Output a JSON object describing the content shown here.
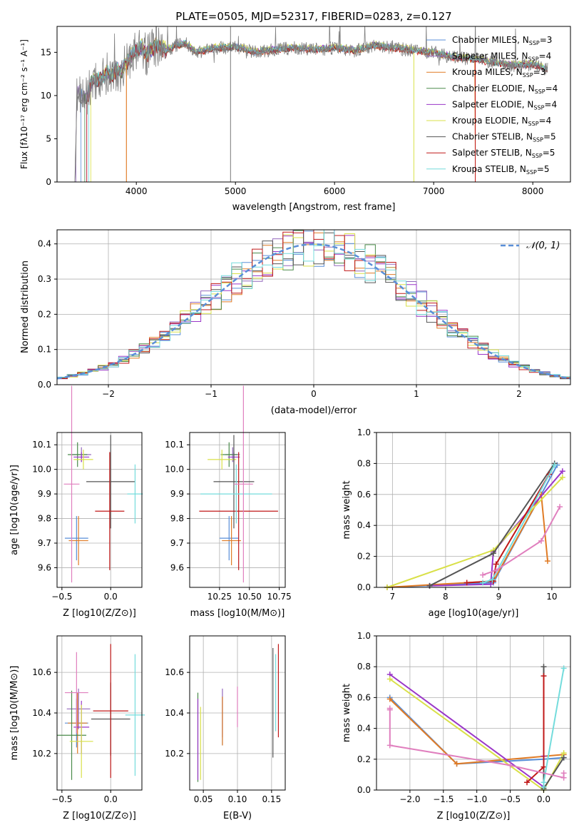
{
  "chart_data": [
    {
      "type": "line",
      "title": "PLATE=0505, MJD=52317, FIBERID=0283, z=0.127",
      "xlabel": "wavelength [Angstrom, rest frame]",
      "ylabel": "Flux [fλ10⁻¹⁷ erg cm⁻² s⁻¹ A⁻¹]",
      "xlim": [
        3200,
        8380
      ],
      "ylim": [
        0,
        18
      ],
      "xticks": [
        4000,
        5000,
        6000,
        7000,
        8000
      ],
      "yticks": [
        0,
        5,
        10,
        15
      ],
      "grid": false,
      "legend_position": "upper right",
      "observed_spectrum": {
        "x": [
          3380,
          3400,
          3450,
          3500,
          3550,
          3600,
          3650,
          3700,
          3750,
          3800,
          3850,
          3900,
          3950,
          4000,
          4050,
          4100,
          4200,
          4300,
          4400,
          4500,
          4600,
          4800,
          5000,
          5200,
          5400,
          5600,
          5800,
          6000,
          6200,
          6400,
          6600,
          6800,
          7000,
          7200,
          7400,
          7600,
          7800,
          8000,
          8150
        ],
        "y": [
          0,
          10.5,
          10.0,
          9.8,
          11.5,
          11.8,
          12.0,
          12.6,
          12.2,
          13.0,
          12.8,
          13.8,
          14.6,
          15.2,
          15.5,
          14.7,
          15.8,
          15.2,
          15.8,
          16.0,
          15.0,
          15.5,
          15.6,
          15.0,
          15.3,
          15.5,
          15.3,
          15.5,
          15.2,
          15.8,
          15.5,
          15.2,
          15.0,
          14.4,
          14.2,
          13.8,
          13.5,
          13.6,
          13.0
        ]
      },
      "series": [
        {
          "name": "Chabrier MILES, N_SSP=3",
          "color": "#5a8fd8",
          "offset": 0.0
        },
        {
          "name": "Salpeter MILES, N_SSP=4",
          "color": "#9468bd",
          "offset": 0.08
        },
        {
          "name": "Kroupa MILES, N_SSP=3",
          "color": "#e07b25",
          "offset": -0.08
        },
        {
          "name": "Chabrier ELODIE, N_SSP=4",
          "color": "#4a8a4a",
          "offset": 0.05
        },
        {
          "name": "Salpeter ELODIE, N_SSP=4",
          "color": "#9a36c8",
          "offset": 0.12
        },
        {
          "name": "Kroupa ELODIE, N_SSP=4",
          "color": "#d9e048",
          "offset": 0.2
        },
        {
          "name": "Chabrier STELIB, N_SSP=5",
          "color": "#555555",
          "offset": -0.05
        },
        {
          "name": "Salpeter STELIB, N_SSP=5",
          "color": "#c01818",
          "offset": -0.1
        },
        {
          "name": "Kroupa STELIB, N_SSP=5",
          "color": "#74dcdc",
          "offset": 0.1
        }
      ],
      "legend_labels": [
        [
          "Chabrier MILES, N",
          "SSP",
          "=3"
        ],
        [
          "Salpeter MILES, N",
          "SSP",
          "=4"
        ],
        [
          "Kroupa MILES, N",
          "SSP",
          "=3"
        ],
        [
          "Chabrier ELODIE, N",
          "SSP",
          "=4"
        ],
        [
          "Salpeter ELODIE, N",
          "SSP",
          "=4"
        ],
        [
          "Kroupa ELODIE, N",
          "SSP",
          "=4"
        ],
        [
          "Chabrier STELIB, N",
          "SSP",
          "=5"
        ],
        [
          "Salpeter STELIB, N",
          "SSP",
          "=5"
        ],
        [
          "Kroupa STELIB, N",
          "SSP",
          "=5"
        ]
      ]
    },
    {
      "type": "line",
      "xlabel": "(data-model)/error",
      "ylabel": "Normed distribution",
      "xlim": [
        -2.5,
        2.5
      ],
      "ylim": [
        0,
        0.44
      ],
      "xticks": [
        -2,
        -1,
        0,
        1,
        2
      ],
      "yticks": [
        0.0,
        0.1,
        0.2,
        0.3,
        0.4
      ],
      "grid": true,
      "legend_position": "upper right",
      "reference_curve": {
        "name": "𝒩(0, 1)",
        "mean": 0,
        "sigma": 1,
        "color": "#5a8fd8"
      },
      "histogram_bin_width": 0.1
    },
    {
      "type": "scatter",
      "xlabel": "Z [log10(Z/Z⊙)]",
      "ylabel": "age  [log10(age/yr)]",
      "xlim": [
        -0.55,
        0.32
      ],
      "ylim": [
        9.52,
        10.15
      ],
      "xticks": [
        -0.5,
        0.0
      ],
      "yticks": [
        9.6,
        9.7,
        9.8,
        9.9,
        10.0,
        10.1
      ],
      "grid": true,
      "points": [
        {
          "series": 0,
          "x": -0.35,
          "xerr": 0.12,
          "y": 9.72,
          "yerr": 0.09
        },
        {
          "series": 1,
          "x": -0.3,
          "xerr": 0.1,
          "y": 10.06,
          "yerr": 0.03
        },
        {
          "series": 2,
          "x": -0.33,
          "xerr": 0.1,
          "y": 9.71,
          "yerr": 0.1
        },
        {
          "series": 3,
          "x": -0.34,
          "xerr": 0.1,
          "y": 10.06,
          "yerr": 0.05
        },
        {
          "series": 4,
          "x": -0.3,
          "xerr": 0.08,
          "y": 10.05,
          "yerr": 0.02
        },
        {
          "series": 5,
          "x": -0.28,
          "xerr": 0.1,
          "y": 10.04,
          "yerr": 0.04
        },
        {
          "series": 6,
          "x": 0.0,
          "xerr": 0.25,
          "y": 9.95,
          "yerr": 0.19
        },
        {
          "series": 7,
          "x": -0.01,
          "xerr": 0.15,
          "y": 9.83,
          "yerr": 0.24
        },
        {
          "series": 8,
          "x": 0.25,
          "xerr": 0.08,
          "y": 9.9,
          "yerr": 0.12
        },
        {
          "series": 9,
          "x": -0.4,
          "xerr": 0.08,
          "y": 9.94,
          "yerr": 0.4
        }
      ]
    },
    {
      "type": "scatter",
      "xlabel": "mass [log10(M/M⊙)]",
      "ylabel": "",
      "xlim": [
        10.0,
        10.8
      ],
      "ylim": [
        9.52,
        10.15
      ],
      "xticks": [
        10.25,
        10.5,
        10.75
      ],
      "yticks": [
        9.6,
        9.7,
        9.8,
        9.9,
        10.0,
        10.1
      ],
      "grid": true,
      "points": [
        {
          "series": 0,
          "x": 10.33,
          "xerr": 0.08,
          "y": 9.72,
          "yerr": 0.09
        },
        {
          "series": 1,
          "x": 10.36,
          "xerr": 0.06,
          "y": 10.06,
          "yerr": 0.03
        },
        {
          "series": 2,
          "x": 10.35,
          "xerr": 0.08,
          "y": 9.71,
          "yerr": 0.1
        },
        {
          "series": 3,
          "x": 10.33,
          "xerr": 0.07,
          "y": 10.06,
          "yerr": 0.05
        },
        {
          "series": 4,
          "x": 10.37,
          "xerr": 0.05,
          "y": 10.05,
          "yerr": 0.02
        },
        {
          "series": 5,
          "x": 10.27,
          "xerr": 0.12,
          "y": 10.04,
          "yerr": 0.04
        },
        {
          "series": 6,
          "x": 10.37,
          "xerr": 0.17,
          "y": 9.95,
          "yerr": 0.19
        },
        {
          "series": 7,
          "x": 10.41,
          "xerr": 0.33,
          "y": 9.83,
          "yerr": 0.24
        },
        {
          "series": 8,
          "x": 10.39,
          "xerr": 0.3,
          "y": 9.9,
          "yerr": 0.12
        },
        {
          "series": 9,
          "x": 10.45,
          "xerr": 0.08,
          "y": 9.94,
          "yerr": 0.4
        }
      ]
    },
    {
      "type": "line",
      "xlabel": "age  [log10(age/yr)]",
      "ylabel": "mass weight",
      "xlim": [
        6.7,
        10.35
      ],
      "ylim": [
        0,
        1.0
      ],
      "xticks": [
        7,
        8,
        9,
        10
      ],
      "yticks": [
        0.0,
        0.2,
        0.4,
        0.6,
        0.8,
        1.0
      ],
      "grid": true,
      "lines": [
        {
          "series": 0,
          "x": [
            6.9,
            8.9,
            10.1
          ],
          "y": [
            0.0,
            0.03,
            0.79
          ]
        },
        {
          "series": 2,
          "x": [
            6.9,
            8.9,
            9.8,
            9.92
          ],
          "y": [
            0.0,
            0.04,
            0.6,
            0.17
          ]
        },
        {
          "series": 4,
          "x": [
            7.7,
            8.85,
            8.9,
            10.2
          ],
          "y": [
            0.01,
            0.02,
            0.23,
            0.75
          ]
        },
        {
          "series": 5,
          "x": [
            6.9,
            8.9,
            10.2
          ],
          "y": [
            0.0,
            0.24,
            0.71
          ]
        },
        {
          "series": 6,
          "x": [
            7.7,
            8.9,
            10.05
          ],
          "y": [
            0.01,
            0.22,
            0.8
          ]
        },
        {
          "series": 7,
          "x": [
            8.4,
            8.9,
            8.95,
            9.95
          ],
          "y": [
            0.03,
            0.04,
            0.15,
            0.73
          ]
        },
        {
          "series": 8,
          "x": [
            8.7,
            8.88,
            10.05
          ],
          "y": [
            0.03,
            0.05,
            0.79
          ]
        },
        {
          "series": 9,
          "x": [
            8.7,
            8.95,
            9.8,
            10.15
          ],
          "y": [
            0.08,
            0.11,
            0.3,
            0.52
          ]
        }
      ]
    },
    {
      "type": "scatter",
      "xlabel": "Z [log10(Z/Z⊙)]",
      "ylabel": "mass [log10(M/M⊙)]",
      "xlim": [
        -0.55,
        0.32
      ],
      "ylim": [
        10.02,
        10.78
      ],
      "xticks": [
        -0.5,
        0.0
      ],
      "yticks": [
        10.2,
        10.4,
        10.6
      ],
      "grid": true,
      "points": [
        {
          "series": 0,
          "x": -0.35,
          "xerr": 0.12,
          "y": 10.35,
          "yerr": 0.12
        },
        {
          "series": 1,
          "x": -0.33,
          "xerr": 0.12,
          "y": 10.42,
          "yerr": 0.1
        },
        {
          "series": 2,
          "x": -0.34,
          "xerr": 0.1,
          "y": 10.35,
          "yerr": 0.15
        },
        {
          "series": 3,
          "x": -0.4,
          "xerr": 0.15,
          "y": 10.29,
          "yerr": 0.22
        },
        {
          "series": 4,
          "x": -0.3,
          "xerr": 0.08,
          "y": 10.33,
          "yerr": 0.13
        },
        {
          "series": 5,
          "x": -0.3,
          "xerr": 0.12,
          "y": 10.26,
          "yerr": 0.18
        },
        {
          "series": 6,
          "x": 0.0,
          "xerr": 0.2,
          "y": 10.37,
          "yerr": 0.18
        },
        {
          "series": 7,
          "x": 0.0,
          "xerr": 0.18,
          "y": 10.41,
          "yerr": 0.33
        },
        {
          "series": 8,
          "x": 0.25,
          "xerr": 0.1,
          "y": 10.39,
          "yerr": 0.3
        },
        {
          "series": 9,
          "x": -0.35,
          "xerr": 0.12,
          "y": 10.5,
          "yerr": 0.2
        }
      ]
    },
    {
      "type": "scatter",
      "xlabel": "E(B-V)",
      "ylabel": "",
      "xlim": [
        0.03,
        0.17
      ],
      "ylim": [
        10.02,
        10.78
      ],
      "xticks": [
        0.05,
        0.1,
        0.15
      ],
      "yticks": [
        10.2,
        10.4,
        10.6
      ],
      "grid": true,
      "points": [
        {
          "series": 0,
          "x": 0.078,
          "yerr": 0.12,
          "y": 10.36
        },
        {
          "series": 1,
          "x": 0.078,
          "yerr": 0.12,
          "y": 10.4
        },
        {
          "series": 2,
          "x": 0.078,
          "yerr": 0.12,
          "y": 10.36
        },
        {
          "series": 3,
          "x": 0.042,
          "yerr": 0.22,
          "y": 10.28
        },
        {
          "series": 4,
          "x": 0.042,
          "yerr": 0.2,
          "y": 10.27
        },
        {
          "series": 5,
          "x": 0.046,
          "yerr": 0.18,
          "y": 10.25
        },
        {
          "series": 6,
          "x": 0.152,
          "yerr": 0.27,
          "y": 10.45
        },
        {
          "series": 7,
          "x": 0.16,
          "yerr": 0.23,
          "y": 10.51
        },
        {
          "series": 8,
          "x": 0.156,
          "yerr": 0.19,
          "y": 10.5
        },
        {
          "series": 9,
          "x": 0.1,
          "yerr": 0.1,
          "y": 10.43
        }
      ]
    },
    {
      "type": "line",
      "xlabel": "Z [log10(Z/Z⊙)]",
      "ylabel": "mass weight",
      "xlim": [
        -2.5,
        0.4
      ],
      "ylim": [
        0,
        1.0
      ],
      "xticks": [
        -2.0,
        -1.5,
        -1.0,
        -0.5,
        0.0
      ],
      "yticks": [
        0.0,
        0.2,
        0.4,
        0.6,
        0.8,
        1.0
      ],
      "grid": true,
      "lines": [
        {
          "series": 0,
          "x": [
            -2.3,
            -1.3,
            0.0,
            0.3
          ],
          "y": [
            0.6,
            0.17,
            0.2,
            0.21
          ]
        },
        {
          "series": 2,
          "x": [
            -2.3,
            -1.3,
            0.3
          ],
          "y": [
            0.59,
            0.17,
            0.23
          ]
        },
        {
          "series": 4,
          "x": [
            -2.3,
            0.0,
            0.0
          ],
          "y": [
            0.75,
            0.02,
            0.22
          ]
        },
        {
          "series": 5,
          "x": [
            -2.3,
            0.0,
            0.3
          ],
          "y": [
            0.72,
            0.0,
            0.24
          ]
        },
        {
          "series": 6,
          "x": [
            0.0,
            0.0,
            0.3
          ],
          "y": [
            0.8,
            0.01,
            0.21
          ]
        },
        {
          "series": 7,
          "x": [
            -0.25,
            0.0,
            0.0
          ],
          "y": [
            0.05,
            0.15,
            0.74
          ]
        },
        {
          "series": 8,
          "x": [
            0.0,
            0.0,
            0.3
          ],
          "y": [
            0.02,
            0.05,
            0.79
          ]
        },
        {
          "series": 9,
          "x": [
            -2.3,
            -2.3,
            -2.3,
            -0.5,
            0.3,
            0.3
          ],
          "y": [
            0.53,
            0.52,
            0.29,
            0.16,
            0.08,
            0.11
          ]
        }
      ]
    }
  ],
  "palette": [
    "#5a8fd8",
    "#9468bd",
    "#e07b25",
    "#4a8a4a",
    "#9a36c8",
    "#d9e048",
    "#555555",
    "#c01818",
    "#74dcdc",
    "#e07fbe"
  ]
}
